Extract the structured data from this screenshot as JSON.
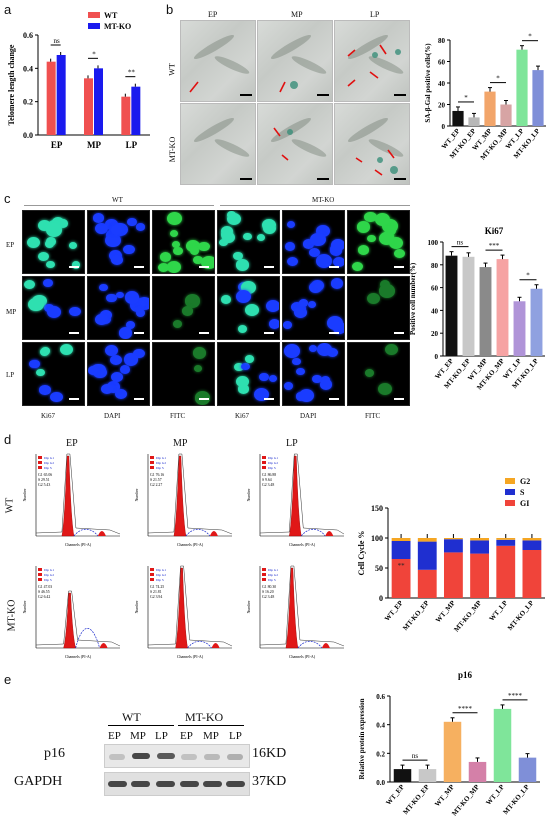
{
  "panels": {
    "a": "a",
    "b": "b",
    "c": "c",
    "d": "d",
    "e": "e"
  },
  "panel_b": {
    "columns": [
      "EP",
      "MP",
      "LP"
    ],
    "rows": [
      "WT",
      "MT-KO"
    ]
  },
  "panel_c": {
    "groups": [
      "WT",
      "MT-KO"
    ],
    "rows": [
      "EP",
      "MP",
      "LP"
    ],
    "columns": [
      "Ki67",
      "DAPI",
      "FITC",
      "Ki67",
      "DAPI",
      "FITC"
    ]
  },
  "panel_d": {
    "columns": [
      "EP",
      "MP",
      "LP"
    ],
    "rows": [
      "WT",
      "MT-KO"
    ],
    "hist_legend": [
      "Dip G1",
      "Dip G2",
      "Dip S"
    ],
    "hist_values": [
      [
        "G1 65.06",
        "S 29.51",
        "G2 5.43"
      ],
      [
        "G1 76.16",
        "S 21.57",
        "G2 2.27"
      ],
      [
        "G1 86.88",
        "S 9.64",
        "G2 3.48"
      ],
      [
        "G1 47.03",
        "S 46.55",
        "G2 6.42"
      ],
      [
        "G1 74.25",
        "S 21.81",
        "G2 3.94"
      ],
      [
        "G1 80.30",
        "S 16.20",
        "G2 3.48"
      ]
    ],
    "hist_xlabel": "Channels (PI-A)",
    "hist_ylabel": "Number"
  },
  "panel_e": {
    "groups": [
      "WT",
      "MT-KO"
    ],
    "lanes": [
      "EP",
      "MP",
      "LP",
      "EP",
      "MP",
      "LP"
    ],
    "proteins": [
      "p16",
      "GAPDH"
    ],
    "sizes": [
      "16KD",
      "37KD"
    ]
  },
  "colors": {
    "wt": "#f05050",
    "mtko": "#1a1aee",
    "g2": "#f5a623",
    "s": "#1f2fd0",
    "g1": "#f0443a"
  },
  "chart_data": [
    {
      "type": "bar",
      "id": "a",
      "categories": [
        "EP",
        "MP",
        "LP"
      ],
      "series": [
        {
          "name": "WT",
          "values": [
            0.44,
            0.34,
            0.23
          ]
        },
        {
          "name": "MT-KO",
          "values": [
            0.48,
            0.4,
            0.29
          ]
        }
      ],
      "ylabel": "Telomere length change",
      "ylim": [
        0,
        0.6
      ],
      "yticks": [
        "0.0",
        "0.2",
        "0.4",
        "0.6"
      ],
      "sig": [
        "ns",
        "*",
        "**"
      ],
      "legend": "top-right"
    },
    {
      "type": "bar",
      "id": "b",
      "categories": [
        "WT_EP",
        "MT-KO_EP",
        "WT_MP",
        "MT-KO_MP",
        "WT_LP",
        "MT-KO_LP"
      ],
      "values": [
        14,
        8,
        32,
        20,
        71,
        52
      ],
      "ylabel": "SA-β-Gal positive cells(%)",
      "ylim": [
        0,
        80
      ],
      "yticks": [
        "0",
        "20",
        "40",
        "60",
        "80"
      ],
      "sig": [
        "*",
        "*",
        "*"
      ]
    },
    {
      "type": "bar",
      "id": "c",
      "title": "Ki67",
      "categories": [
        "WT_EP",
        "MT-KO_EP",
        "WT_MP",
        "MT-KO_MP",
        "WT_LP",
        "MT-KO_LP"
      ],
      "values": [
        88,
        87,
        78,
        85,
        48,
        59
      ],
      "ylabel": "Positive cell number(%)",
      "ylim": [
        0,
        100
      ],
      "yticks": [
        "0",
        "20",
        "40",
        "60",
        "80",
        "100"
      ],
      "sig": [
        "ns",
        "***",
        "*"
      ]
    },
    {
      "type": "bar",
      "id": "d",
      "stacked": true,
      "categories": [
        "WT_EP",
        "MT-KO_EP",
        "WT_MP",
        "MT-KO_MP",
        "WT_LP",
        "MT-KO_LP"
      ],
      "series": [
        {
          "name": "GI",
          "values": [
            65,
            47,
            76,
            74,
            87,
            80
          ]
        },
        {
          "name": "S",
          "values": [
            30,
            47,
            22,
            22,
            10,
            16
          ]
        },
        {
          "name": "G2",
          "values": [
            5,
            6,
            2,
            4,
            3,
            4
          ]
        }
      ],
      "ylabel": "Cell Cycle %",
      "ylim": [
        0,
        150
      ],
      "yticks": [
        "0",
        "50",
        "100",
        "150"
      ],
      "sig": [
        "**"
      ],
      "legend": "top-right"
    },
    {
      "type": "bar",
      "id": "e",
      "title": "p16",
      "categories": [
        "WT_EP",
        "MT-KO_EP",
        "WT_MP",
        "MT-KO_MP",
        "WT_LP",
        "MT-KO_LP"
      ],
      "values": [
        0.09,
        0.09,
        0.42,
        0.14,
        0.51,
        0.17
      ],
      "ylabel": "Relative protein expression",
      "ylim": [
        0,
        0.6
      ],
      "yticks": [
        "0.0",
        "0.2",
        "0.4",
        "0.6"
      ],
      "sig": [
        "ns",
        "****",
        "****"
      ]
    }
  ]
}
